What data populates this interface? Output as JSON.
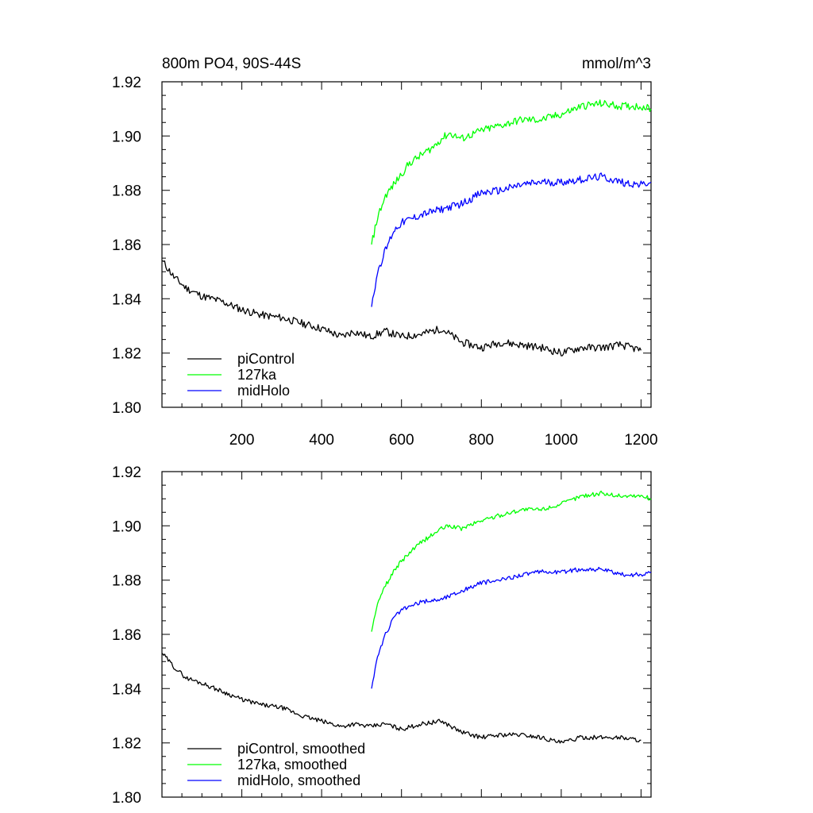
{
  "chart_data": [
    {
      "type": "line",
      "title": "800m PO4, 90S-44S",
      "units": "mmol/m^3",
      "xlim": [
        0,
        1225
      ],
      "ylim": [
        1.8,
        1.92
      ],
      "x_ticks": [
        200,
        400,
        600,
        800,
        1000,
        1200
      ],
      "x_tick_labels": [
        "200",
        "400",
        "600",
        "800",
        "1000",
        "1200"
      ],
      "y_ticks": [
        1.8,
        1.82,
        1.84,
        1.86,
        1.88,
        1.9,
        1.92
      ],
      "y_tick_labels": [
        "1.80",
        "1.82",
        "1.84",
        "1.86",
        "1.88",
        "1.90",
        "1.92"
      ],
      "legend_position": "bottom-left",
      "series": [
        {
          "name": "piControl",
          "color": "#000000",
          "points": [
            [
              1,
              1.854
            ],
            [
              30,
              1.848
            ],
            [
              60,
              1.844
            ],
            [
              100,
              1.841
            ],
            [
              150,
              1.839
            ],
            [
              200,
              1.836
            ],
            [
              250,
              1.834
            ],
            [
              300,
              1.833
            ],
            [
              350,
              1.831
            ],
            [
              400,
              1.829
            ],
            [
              450,
              1.826
            ],
            [
              480,
              1.828
            ],
            [
              520,
              1.826
            ],
            [
              560,
              1.828
            ],
            [
              600,
              1.826
            ],
            [
              650,
              1.827
            ],
            [
              700,
              1.829
            ],
            [
              750,
              1.824
            ],
            [
              800,
              1.822
            ],
            [
              850,
              1.824
            ],
            [
              900,
              1.823
            ],
            [
              950,
              1.822
            ],
            [
              1000,
              1.82
            ],
            [
              1050,
              1.822
            ],
            [
              1100,
              1.822
            ],
            [
              1150,
              1.823
            ],
            [
              1200,
              1.821
            ]
          ]
        },
        {
          "name": "127ka",
          "color": "#00ff00",
          "points": [
            [
              525,
              1.86
            ],
            [
              540,
              1.87
            ],
            [
              560,
              1.878
            ],
            [
              580,
              1.882
            ],
            [
              600,
              1.886
            ],
            [
              620,
              1.89
            ],
            [
              650,
              1.893
            ],
            [
              680,
              1.896
            ],
            [
              700,
              1.899
            ],
            [
              720,
              1.901
            ],
            [
              750,
              1.899
            ],
            [
              800,
              1.902
            ],
            [
              850,
              1.904
            ],
            [
              900,
              1.906
            ],
            [
              950,
              1.906
            ],
            [
              1000,
              1.908
            ],
            [
              1050,
              1.911
            ],
            [
              1100,
              1.912
            ],
            [
              1150,
              1.911
            ],
            [
              1200,
              1.911
            ],
            [
              1225,
              1.91
            ]
          ]
        },
        {
          "name": "midHolo",
          "color": "#0000ff",
          "points": [
            [
              525,
              1.837
            ],
            [
              540,
              1.85
            ],
            [
              560,
              1.858
            ],
            [
              580,
              1.865
            ],
            [
              600,
              1.868
            ],
            [
              650,
              1.871
            ],
            [
              700,
              1.873
            ],
            [
              750,
              1.875
            ],
            [
              800,
              1.879
            ],
            [
              850,
              1.88
            ],
            [
              900,
              1.882
            ],
            [
              950,
              1.883
            ],
            [
              1000,
              1.883
            ],
            [
              1050,
              1.884
            ],
            [
              1100,
              1.885
            ],
            [
              1150,
              1.883
            ],
            [
              1200,
              1.882
            ],
            [
              1225,
              1.883
            ]
          ]
        }
      ]
    },
    {
      "type": "line",
      "xlim": [
        0,
        1225
      ],
      "ylim": [
        1.8,
        1.92
      ],
      "x_ticks": [
        200,
        400,
        600,
        800,
        1000,
        1200
      ],
      "y_ticks": [
        1.8,
        1.82,
        1.84,
        1.86,
        1.88,
        1.9,
        1.92
      ],
      "y_tick_labels": [
        "1.80",
        "1.82",
        "1.84",
        "1.86",
        "1.88",
        "1.90",
        "1.92"
      ],
      "legend_position": "bottom-left",
      "series": [
        {
          "name": "piControl, smoothed",
          "color": "#000000",
          "points": [
            [
              1,
              1.853
            ],
            [
              30,
              1.848
            ],
            [
              60,
              1.844
            ],
            [
              100,
              1.842
            ],
            [
              150,
              1.839
            ],
            [
              200,
              1.836
            ],
            [
              250,
              1.834
            ],
            [
              300,
              1.833
            ],
            [
              350,
              1.83
            ],
            [
              400,
              1.828
            ],
            [
              450,
              1.826
            ],
            [
              480,
              1.827
            ],
            [
              520,
              1.826
            ],
            [
              560,
              1.827
            ],
            [
              600,
              1.825
            ],
            [
              650,
              1.827
            ],
            [
              700,
              1.828
            ],
            [
              750,
              1.824
            ],
            [
              800,
              1.822
            ],
            [
              850,
              1.823
            ],
            [
              900,
              1.823
            ],
            [
              950,
              1.822
            ],
            [
              1000,
              1.82
            ],
            [
              1050,
              1.822
            ],
            [
              1100,
              1.822
            ],
            [
              1150,
              1.822
            ],
            [
              1200,
              1.821
            ]
          ]
        },
        {
          "name": "127ka, smoothed",
          "color": "#00ff00",
          "points": [
            [
              525,
              1.861
            ],
            [
              540,
              1.871
            ],
            [
              560,
              1.878
            ],
            [
              580,
              1.883
            ],
            [
              600,
              1.887
            ],
            [
              620,
              1.89
            ],
            [
              650,
              1.894
            ],
            [
              680,
              1.897
            ],
            [
              700,
              1.899
            ],
            [
              720,
              1.9
            ],
            [
              750,
              1.899
            ],
            [
              800,
              1.902
            ],
            [
              850,
              1.904
            ],
            [
              900,
              1.906
            ],
            [
              950,
              1.906
            ],
            [
              1000,
              1.908
            ],
            [
              1050,
              1.911
            ],
            [
              1100,
              1.912
            ],
            [
              1150,
              1.911
            ],
            [
              1200,
              1.911
            ],
            [
              1225,
              1.91
            ]
          ]
        },
        {
          "name": "midHolo, smoothed",
          "color": "#0000ff",
          "points": [
            [
              525,
              1.84
            ],
            [
              540,
              1.852
            ],
            [
              560,
              1.86
            ],
            [
              580,
              1.866
            ],
            [
              600,
              1.869
            ],
            [
              650,
              1.872
            ],
            [
              700,
              1.873
            ],
            [
              750,
              1.876
            ],
            [
              800,
              1.879
            ],
            [
              850,
              1.88
            ],
            [
              900,
              1.882
            ],
            [
              950,
              1.883
            ],
            [
              1000,
              1.883
            ],
            [
              1050,
              1.884
            ],
            [
              1100,
              1.884
            ],
            [
              1150,
              1.882
            ],
            [
              1200,
              1.882
            ],
            [
              1225,
              1.883
            ]
          ]
        }
      ]
    }
  ]
}
